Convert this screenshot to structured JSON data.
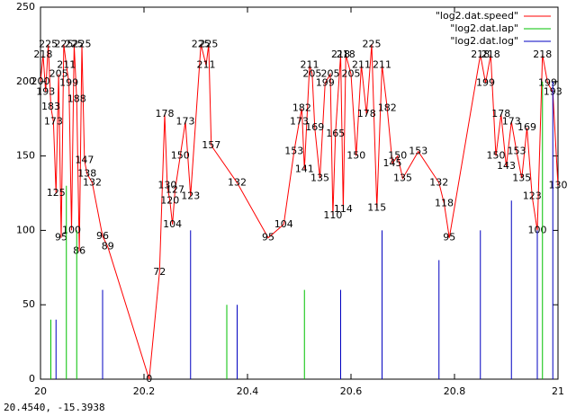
{
  "chart_data": {
    "type": "impulse-line",
    "xlim": [
      20,
      21
    ],
    "xticks": [
      20,
      20.2,
      20.4,
      20.6,
      20.8,
      21
    ],
    "ylim": [
      0,
      250
    ],
    "yticks": [
      0,
      50,
      100,
      150,
      200,
      250
    ],
    "legend": "top-right",
    "series": [
      {
        "name": "\"log2.dat.speed\"",
        "color": "#ff0000",
        "style": "line",
        "x": [
          20,
          20.005,
          20.01,
          20.015,
          20.02,
          20.025,
          20.03,
          20.035,
          20.04,
          20.045,
          20.05,
          20.055,
          20.06,
          20.065,
          20.07,
          20.075,
          20.08,
          20.085,
          20.09,
          20.1,
          20.12,
          20.13,
          20.21,
          20.23,
          20.24,
          20.245,
          20.25,
          20.255,
          20.26,
          20.27,
          20.28,
          20.29,
          20.31,
          20.32,
          20.325,
          20.33,
          20.38,
          20.44,
          20.47,
          20.49,
          20.5,
          20.505,
          20.51,
          20.52,
          20.525,
          20.53,
          20.54,
          20.55,
          20.56,
          20.565,
          20.57,
          20.58,
          20.585,
          20.59,
          20.6,
          20.61,
          20.62,
          20.63,
          20.64,
          20.65,
          20.66,
          20.67,
          20.68,
          20.69,
          20.7,
          20.73,
          20.77,
          20.78,
          20.79,
          20.85,
          20.86,
          20.87,
          20.88,
          20.89,
          20.9,
          20.91,
          20.92,
          20.93,
          20.94,
          20.95,
          20.96,
          20.97,
          20.98,
          20.99,
          21
        ],
        "values": [
          200,
          218,
          193,
          225,
          183,
          173,
          125,
          205,
          95,
          225,
          211,
          199,
          100,
          225,
          188,
          86,
          225,
          147,
          138,
          132,
          96,
          89,
          0,
          72,
          178,
          130,
          120,
          104,
          127,
          150,
          173,
          123,
          225,
          211,
          225,
          157,
          132,
          95,
          104,
          153,
          173,
          182,
          141,
          211,
          205,
          169,
          135,
          199,
          205,
          110,
          165,
          218,
          114,
          218,
          205,
          150,
          211,
          178,
          225,
          115,
          211,
          182,
          145,
          150,
          135,
          153,
          132,
          118,
          95,
          218,
          199,
          218,
          150,
          178,
          143,
          173,
          153,
          135,
          169,
          123,
          100,
          218,
          199,
          193,
          130
        ]
      },
      {
        "name": "\"log2.dat.lap\"",
        "color": "#00c000",
        "style": "impulses",
        "x": [
          20.02,
          20.05,
          20.07,
          20.36,
          20.51,
          20.97
        ],
        "values": [
          40,
          130,
          100,
          50,
          60,
          200
        ]
      },
      {
        "name": "\"log2.dat.log\"",
        "color": "#0000c0",
        "style": "impulses",
        "x": [
          20.03,
          20.12,
          20.29,
          20.38,
          20.58,
          20.66,
          20.77,
          20.85,
          20.91,
          20.96,
          20.99
        ],
        "values": [
          40,
          60,
          100,
          50,
          60,
          100,
          80,
          100,
          120,
          100,
          200
        ]
      }
    ]
  },
  "status_bar": "20.4540, -15.3938"
}
